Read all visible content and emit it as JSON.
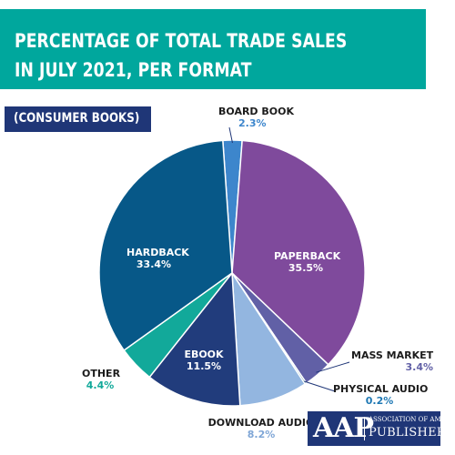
{
  "title_lines": [
    "PERCENTAGE OF TOTAL TRADE SALES",
    "IN JULY 2021, PER FORMAT"
  ],
  "subtitle": "(CONSUMER BOOKS)",
  "logo": {
    "mark": "AAP",
    "line1": "ASSOCIATION OF AMERICAN",
    "line2": "PUBLISHERS"
  },
  "colors": {
    "header_bg": "#00a79d",
    "badge_bg": "#1f3677",
    "label_dark": "#1c1c1c"
  },
  "chart_data": {
    "type": "pie",
    "title": "PERCENTAGE OF TOTAL TRADE SALES IN JULY 2021, PER FORMAT",
    "subtitle": "(CONSUMER BOOKS)",
    "slices": [
      {
        "name": "BOARD BOOK",
        "value": 2.3,
        "label": "2.3%",
        "color": "#3d86cc",
        "value_color": "#3d86cc"
      },
      {
        "name": "PAPERBACK",
        "value": 35.5,
        "label": "35.5%",
        "color": "#7f4a9c",
        "value_color": "#ffffff"
      },
      {
        "name": "MASS MARKET",
        "value": 3.4,
        "label": "3.4%",
        "color": "#6160a6",
        "value_color": "#6160a6"
      },
      {
        "name": "PHYSICAL AUDIO",
        "value": 0.2,
        "label": "0.2%",
        "color": "#0e5e78",
        "value_color": "#1e78b4"
      },
      {
        "name": "DOWNLOAD AUDIO",
        "value": 8.2,
        "label": "8.2%",
        "color": "#93b6e0",
        "value_color": "#7fa6d6"
      },
      {
        "name": "EBOOK",
        "value": 11.5,
        "label": "11.5%",
        "color": "#213c7c",
        "value_color": "#ffffff"
      },
      {
        "name": "OTHER",
        "value": 4.4,
        "label": "4.4%",
        "color": "#12a99a",
        "value_color": "#12a99a"
      },
      {
        "name": "HARDBACK",
        "value": 33.4,
        "label": "33.4%",
        "color": "#075888",
        "value_color": "#ffffff"
      }
    ],
    "start_angle_deg": -4,
    "direction": "clockwise",
    "legend": "none"
  }
}
